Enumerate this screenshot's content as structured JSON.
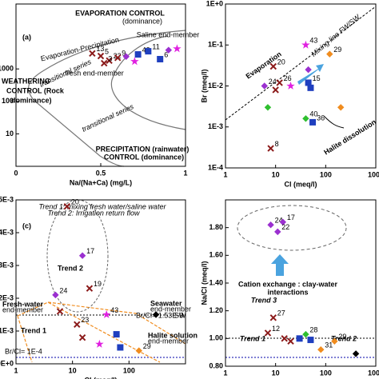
{
  "chart_data": [
    {
      "type": "scatter",
      "xlabel": "Na/(Na+Ca) (mg/L)",
      "label": "(a)",
      "xlim": [
        0,
        1
      ],
      "xticks": [
        0,
        0.5,
        1
      ],
      "ylim": [
        1,
        100000
      ],
      "ylog": true,
      "yticks": [
        10,
        100,
        1000
      ],
      "annotations": [
        "Evaporation-Precipitation",
        "EVAPORATION CONTROL",
        "(dominance)",
        "WEATHERING",
        "CONTROL (Rock",
        "dominance)",
        "PRECIPITATION (rainwater)",
        "CONTROL (dominance)",
        "transitional series",
        "transitional series",
        "fresh end-member",
        "Saline end-member"
      ],
      "series": [
        {
          "color": "#8b1a1a",
          "marker": "x",
          "x": [
            0.45,
            0.5,
            0.55,
            0.6,
            0.52
          ],
          "values": [
            3000,
            2500,
            1800,
            2200,
            1500
          ],
          "labels": [
            "13",
            "5",
            "22",
            "9",
            "3"
          ]
        },
        {
          "color": "#1f3fbf",
          "marker": "square",
          "x": [
            0.72,
            0.85,
            0.78
          ],
          "values": [
            2800,
            2000,
            3500
          ],
          "labels": [
            "43",
            "6",
            "11"
          ]
        },
        {
          "color": "#9b30d0",
          "marker": "diamond",
          "x": [
            0.65,
            0.9
          ],
          "values": [
            2400,
            3800
          ],
          "labels": [
            null,
            null
          ]
        },
        {
          "color": "#e020e0",
          "marker": "star",
          "x": [
            0.7,
            0.95
          ],
          "values": [
            1700,
            4200
          ],
          "labels": [
            null,
            null
          ]
        }
      ]
    },
    {
      "type": "scatter",
      "xlabel": "Cl (meq/l)",
      "ylabel": "Br (meq/l)",
      "xlim": [
        1,
        1000
      ],
      "xlog": true,
      "xticks": [
        1,
        10,
        100,
        1000
      ],
      "ylim": [
        0.0001,
        1
      ],
      "ylog": true,
      "yticks": [
        {
          "value": 1,
          "label": "1E+0"
        },
        {
          "value": 0.1,
          "label": "1E-1"
        },
        {
          "value": 0.01,
          "label": "1E-2"
        },
        {
          "value": 0.001,
          "label": "1E-3"
        },
        {
          "value": 0.0001,
          "label": "1E-4"
        }
      ],
      "annotations": [
        "Mixing line FW/SW",
        "Evaporation",
        "Halite dissolution"
      ],
      "series": [
        {
          "color": "#8b1a1a",
          "marker": "x",
          "x": [
            9,
            12,
            10,
            8
          ],
          "values": [
            0.03,
            0.012,
            0.008,
            0.0003
          ],
          "labels": [
            "20",
            "26",
            null,
            "8"
          ]
        },
        {
          "color": "#9b30d0",
          "marker": "diamond",
          "x": [
            6,
            45
          ],
          "values": [
            0.01,
            0.025
          ],
          "labels": [
            "24",
            null
          ]
        },
        {
          "color": "#1f3fbf",
          "marker": "square",
          "x": [
            45,
            55,
            50
          ],
          "values": [
            0.012,
            0.0013,
            0.009
          ],
          "labels": [
            "15",
            "36",
            null
          ]
        },
        {
          "color": "#2fbf2f",
          "marker": "diamond",
          "x": [
            40,
            7
          ],
          "values": [
            0.0016,
            0.003
          ],
          "labels": [
            "40",
            null
          ]
        },
        {
          "color": "#e020e0",
          "marker": "star",
          "x": [
            40,
            20
          ],
          "values": [
            0.1,
            0.01
          ],
          "labels": [
            "43",
            null
          ]
        },
        {
          "color": "#f08c1e",
          "marker": "diamond",
          "x": [
            120,
            200
          ],
          "values": [
            0.06,
            0.003
          ],
          "labels": [
            "29",
            null
          ]
        }
      ]
    },
    {
      "type": "scatter",
      "xlabel": "Cl (meq/l)",
      "label": "(c)",
      "xlim": [
        1,
        1000
      ],
      "xlog": true,
      "xticks": [
        1,
        10,
        100
      ],
      "ylim": [
        0,
        0.005
      ],
      "yticks": [
        {
          "value": 0.005,
          "label": "5E-3"
        },
        {
          "value": 0.004,
          "label": "4E-3"
        },
        {
          "value": 0.003,
          "label": "3E-3"
        },
        {
          "value": 0.002,
          "label": "2E-3"
        },
        {
          "value": 0.001,
          "label": "1E-3"
        },
        {
          "value": 0,
          "label": "0E+0"
        }
      ],
      "annotations": [
        "Trend 1: mixing fresh water/saline water",
        "Trend 2: Irrigation return flow",
        "Trend 2",
        "Trend 1",
        "Fresh-water",
        "end-member",
        "Seawater",
        "end-member",
        "Halite solution",
        "end-member",
        "Br/Cl= 1.53E-3",
        "SW",
        "Br/Cl= 1E-4"
      ],
      "series": [
        {
          "color": "#8b1a1a",
          "marker": "x",
          "x": [
            8,
            20,
            12,
            6,
            15
          ],
          "values": [
            0.0048,
            0.0023,
            0.0012,
            0.0016,
            0.0008
          ],
          "labels": [
            "20",
            "19",
            "23",
            null,
            null
          ]
        },
        {
          "color": "#9b30d0",
          "marker": "diamond",
          "x": [
            15,
            5
          ],
          "values": [
            0.0033,
            0.0021
          ],
          "labels": [
            "17",
            "24"
          ]
        },
        {
          "color": "#e020e0",
          "marker": "star",
          "x": [
            40,
            30
          ],
          "values": [
            0.0015,
            0.0006
          ],
          "labels": [
            "43",
            null
          ]
        },
        {
          "color": "#1f3fbf",
          "marker": "square",
          "x": [
            60,
            70
          ],
          "values": [
            0.0009,
            0.0005
          ],
          "labels": [
            null,
            null
          ]
        },
        {
          "color": "#f08c1e",
          "marker": "diamond",
          "x": [
            150
          ],
          "values": [
            0.0004
          ],
          "labels": [
            "29"
          ]
        },
        {
          "color": "#000000",
          "marker": "diamond",
          "x": [
            300
          ],
          "values": [
            0.0015
          ],
          "labels": [
            null
          ]
        }
      ]
    },
    {
      "type": "scatter",
      "xlabel": "Cl (meq/l)",
      "ylabel": "Na/Cl (meq/l)",
      "xlim": [
        1,
        1000
      ],
      "xlog": true,
      "xticks": [
        1,
        10,
        100,
        1000
      ],
      "ylim": [
        0.8,
        2
      ],
      "yticks": [
        {
          "value": 0.8,
          "label": "0.80"
        },
        {
          "value": 1,
          "label": "1.00"
        },
        {
          "value": 1.2,
          "label": "1.20"
        },
        {
          "value": 1.4,
          "label": "1.40"
        },
        {
          "value": 1.6,
          "label": "1.60"
        },
        {
          "value": 1.8,
          "label": "1.80"
        }
      ],
      "annotations": [
        "Cation exchange : clay-water",
        "interactions",
        "Trend 3",
        "Trend 1",
        "Trend 2"
      ],
      "series": [
        {
          "color": "#9b30d0",
          "marker": "diamond",
          "x": [
            8,
            14,
            11
          ],
          "values": [
            1.82,
            1.84,
            1.77
          ],
          "labels": [
            "24",
            "17",
            "22"
          ]
        },
        {
          "color": "#8b1a1a",
          "marker": "x",
          "x": [
            9,
            7,
            15,
            20
          ],
          "values": [
            1.15,
            1.04,
            1.0,
            0.98
          ],
          "labels": [
            "27",
            "12",
            null,
            null
          ]
        },
        {
          "color": "#2fbf2f",
          "marker": "diamond",
          "x": [
            40
          ],
          "values": [
            1.03
          ],
          "labels": [
            "28"
          ]
        },
        {
          "color": "#1f3fbf",
          "marker": "square",
          "x": [
            30,
            50
          ],
          "values": [
            1.0,
            0.99
          ],
          "labels": [
            null,
            null
          ]
        },
        {
          "color": "#f08c1e",
          "marker": "diamond",
          "x": [
            80,
            150
          ],
          "values": [
            0.92,
            0.98
          ],
          "labels": [
            "31",
            "29"
          ]
        },
        {
          "color": "#000000",
          "marker": "diamond",
          "x": [
            400
          ],
          "values": [
            0.89
          ],
          "labels": [
            null
          ]
        }
      ]
    }
  ]
}
